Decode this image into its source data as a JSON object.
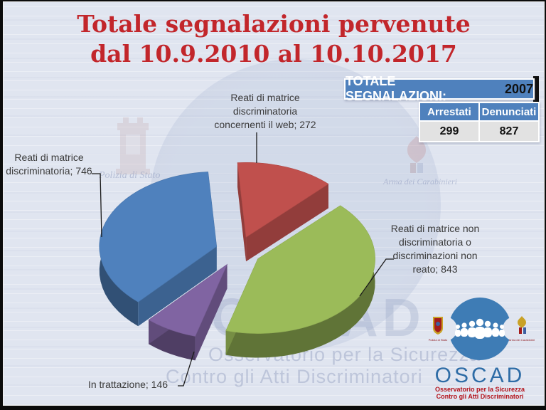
{
  "slide": {
    "title_line1": "Totale segnalazioni pervenute",
    "title_line2": "dal 10.9.2010 al 10.10.2017",
    "title_color": "#c2262b",
    "background_color": "#e0e5f0"
  },
  "summary_table": {
    "header_label": "TOTALE SEGNALAZIONI:",
    "header_value": "2007",
    "header_bg": "#4f81bd",
    "columns": [
      "Arrestati",
      "Denunciati"
    ],
    "values": [
      "299",
      "827"
    ]
  },
  "chart_data": {
    "type": "pie",
    "style": "3d-exploded",
    "title": "Totale segnalazioni pervenute dal 10.9.2010 al 10.10.2017",
    "total": 2007,
    "rotation_deg": 222,
    "legend_position": "none",
    "slices": [
      {
        "label": "Reati di matrice discriminatoria",
        "value": 746,
        "color": "#4f81bd",
        "label_lines": [
          "Reati di matrice",
          "discriminatoria; 746"
        ]
      },
      {
        "label": "Reati di matrice discriminatoria concernenti il web",
        "value": 272,
        "color": "#c0504d",
        "label_lines": [
          "Reati di matrice",
          "discriminatoria",
          "concernenti il web; 272"
        ]
      },
      {
        "label": "Reati di matrice non discriminatoria o discriminazioni non reato",
        "value": 843,
        "color": "#9bbb59",
        "label_lines": [
          "Reati di matrice non",
          "discriminatoria o",
          "discriminazioni non",
          "reato; 843"
        ]
      },
      {
        "label": "In trattazione",
        "value": 146,
        "color": "#8064a2",
        "label_lines": [
          "In trattazione; 146"
        ]
      }
    ]
  },
  "watermark": {
    "big_text": "OSCAD",
    "line1": "Osservatorio per la Sicurezza",
    "line2": "Contro gli Atti Discriminatori",
    "left_crest_caption": "Polizia di Stato",
    "right_crest_caption": "Arma dei Carabinieri"
  },
  "logo": {
    "acronym": "OSCAD",
    "caption_line1": "Osservatorio per la Sicurezza",
    "caption_line2": "Contro gli Atti Discriminatori",
    "left_crest_caption": "Polizia di Stato",
    "right_crest_caption": "Arma dei Carabinieri"
  }
}
